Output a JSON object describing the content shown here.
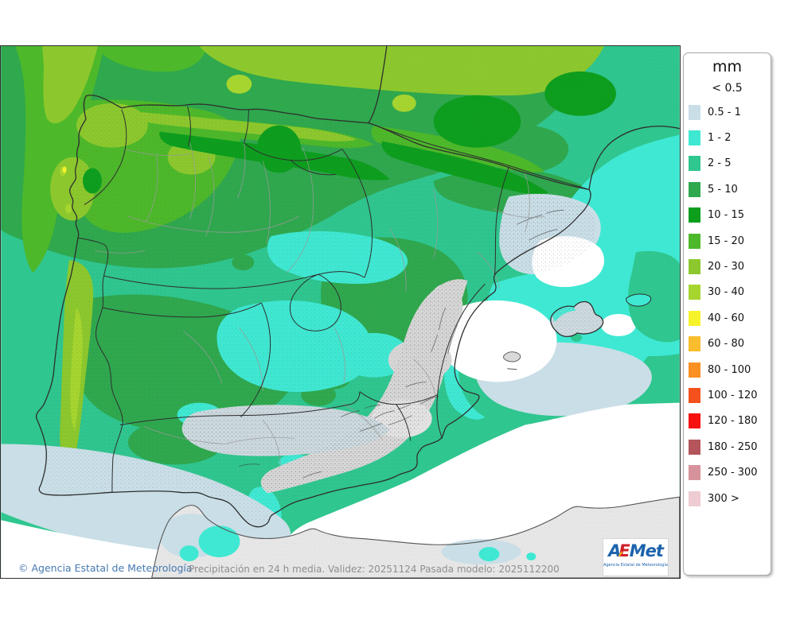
{
  "legend": {
    "title": "mm",
    "threshold_label": "< 0.5",
    "items": [
      {
        "label": "0.5 - 1",
        "color": "#c9dee7"
      },
      {
        "label": "1 - 2",
        "color": "#3fe8d2"
      },
      {
        "label": "2 - 5",
        "color": "#2fc68f"
      },
      {
        "label": "5 - 10",
        "color": "#2fa84e"
      },
      {
        "label": "10 - 15",
        "color": "#0d9e1e"
      },
      {
        "label": "15 - 20",
        "color": "#4db82a"
      },
      {
        "label": "20 - 30",
        "color": "#8cc82d"
      },
      {
        "label": "30 - 40",
        "color": "#a6d52f"
      },
      {
        "label": "40 - 60",
        "color": "#f7f32b"
      },
      {
        "label": "60 - 80",
        "color": "#fabd2d"
      },
      {
        "label": "80 - 100",
        "color": "#fa8f22"
      },
      {
        "label": "100 - 120",
        "color": "#f4511c"
      },
      {
        "label": "120 - 180",
        "color": "#f61110"
      },
      {
        "label": "180 - 250",
        "color": "#b4555b"
      },
      {
        "label": "250 - 300",
        "color": "#d7939b"
      },
      {
        "label": "300 >",
        "color": "#eeccd2"
      }
    ]
  },
  "footer": {
    "copyright": "© Agencia Estatal de Meteorología",
    "caption": "Precipitación en 24 h media. Validez: 20251124 Pasada modelo: 2025112200"
  },
  "logo": {
    "letter_a": "A",
    "letter_e": "E",
    "letters_met": "Met",
    "subtitle": "Agencia Estatal de Meteorología"
  },
  "map_colors": {
    "lt05": "#ffffff",
    "c05_1": "#c9dee7",
    "c1_2": "#3fe8d2",
    "c2_5": "#2fc68f",
    "c5_10": "#2fa84e",
    "c10_15": "#0d9e1e",
    "c15_20": "#4db82a",
    "c20_30": "#8cc82d",
    "c30_40": "#a6d52f",
    "c40_60": "#f7f32b",
    "terrain": "#d6d6d6",
    "terrain_blue": "#ccd9de",
    "africa": "#e7e7e7",
    "border_dark": "#2e2e2e",
    "border_gray": "#9a9a9a",
    "coast_africa": "#555555"
  }
}
